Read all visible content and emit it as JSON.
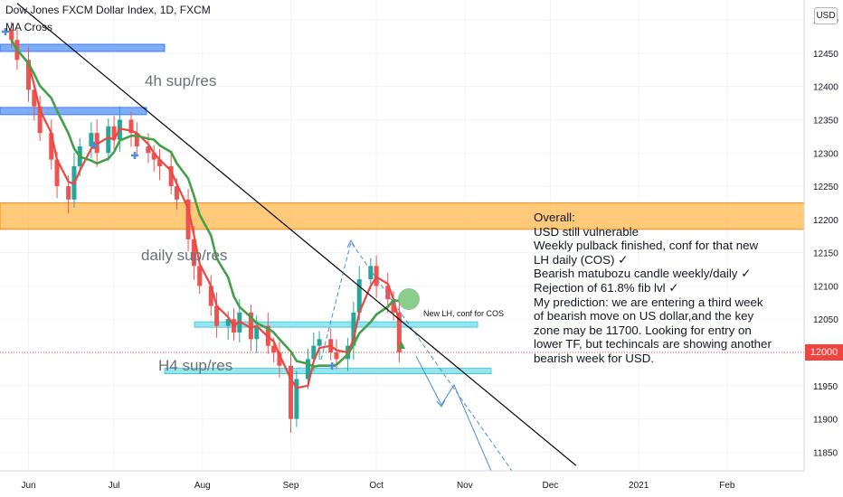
{
  "header": {
    "title": "Dow Jones FXCM Dollar Index, 1D, FXCM",
    "indicator": "MA Cross",
    "currency_badge": "USD"
  },
  "last_price_label": "12000",
  "annotations": {
    "zone_4h": "4h sup/res",
    "zone_daily": "daily sup/res",
    "zone_h4": "H4 sup/res",
    "new_lh_note": "New LH, conf for COS"
  },
  "overall_text": [
    "Overall:",
    "USD still vulnerable",
    "Weekly pulback finished, conf for that new",
    "LH daily (COS) ✓",
    "Bearish matubozu candle weekly/daily ✓",
    "Rejection of 61.8% fib lvl ✓",
    "My prediction: we are entering a third week",
    "of bearish move on US dollar,and the key",
    "zone may be 11700. Looking for entry on",
    "lower TF, but techincals are showing another",
    "bearish week for USD."
  ],
  "colors": {
    "bull_candle": "#26a69a",
    "bear_candle": "#ef5350",
    "fast_ma": "#f0443f",
    "slow_ma": "#43a047",
    "zone_blue": "#5b9bf5",
    "zone_orange": "#ffb74d",
    "zone_cyan": "#80deea",
    "trendline": "#000000",
    "projection": "#4a8fd6",
    "price_line": "#f0443f",
    "cross_marker": "#4a8fd6",
    "highlight_circle": "#66bb6a"
  },
  "chart_data": {
    "type": "candlestick",
    "x_axis": {
      "type": "date",
      "range": [
        "2020-05-22",
        "2021-02-28"
      ],
      "ticks": [
        {
          "label": "Jun",
          "date": "2020-06-01"
        },
        {
          "label": "Jul",
          "date": "2020-07-01"
        },
        {
          "label": "Aug",
          "date": "2020-08-01"
        },
        {
          "label": "Sep",
          "date": "2020-09-01"
        },
        {
          "label": "Oct",
          "date": "2020-10-01"
        },
        {
          "label": "Nov",
          "date": "2020-11-01"
        },
        {
          "label": "Dec",
          "date": "2020-12-01"
        },
        {
          "label": "2021",
          "date": "2021-01-01"
        },
        {
          "label": "Feb",
          "date": "2021-02-01"
        }
      ]
    },
    "y_axis": {
      "range": [
        11822,
        12530
      ],
      "ticks": [
        12500,
        12450,
        12400,
        12350,
        12300,
        12250,
        12200,
        12150,
        12100,
        12050,
        12000,
        11950,
        11900,
        11850
      ],
      "position": "right"
    },
    "last_price": 12000,
    "candles_close": [
      {
        "date": "2020-05-26",
        "close": 12470
      },
      {
        "date": "2020-05-28",
        "close": 12440
      },
      {
        "date": "2020-06-01",
        "close": 12395
      },
      {
        "date": "2020-06-03",
        "close": 12370
      },
      {
        "date": "2020-06-05",
        "close": 12330
      },
      {
        "date": "2020-06-09",
        "close": 12290
      },
      {
        "date": "2020-06-11",
        "close": 12250
      },
      {
        "date": "2020-06-15",
        "close": 12230
      },
      {
        "date": "2020-06-17",
        "close": 12280
      },
      {
        "date": "2020-06-19",
        "close": 12310
      },
      {
        "date": "2020-06-23",
        "close": 12330
      },
      {
        "date": "2020-06-25",
        "close": 12300
      },
      {
        "date": "2020-06-29",
        "close": 12340
      },
      {
        "date": "2020-07-01",
        "close": 12320
      },
      {
        "date": "2020-07-03",
        "close": 12350
      },
      {
        "date": "2020-07-07",
        "close": 12330
      },
      {
        "date": "2020-07-09",
        "close": 12310
      },
      {
        "date": "2020-07-13",
        "close": 12300
      },
      {
        "date": "2020-07-15",
        "close": 12290
      },
      {
        "date": "2020-07-17",
        "close": 12280
      },
      {
        "date": "2020-07-21",
        "close": 12250
      },
      {
        "date": "2020-07-23",
        "close": 12230
      },
      {
        "date": "2020-07-27",
        "close": 12170
      },
      {
        "date": "2020-07-29",
        "close": 12130
      },
      {
        "date": "2020-07-31",
        "close": 12100
      },
      {
        "date": "2020-08-04",
        "close": 12070
      },
      {
        "date": "2020-08-06",
        "close": 12040
      },
      {
        "date": "2020-08-10",
        "close": 12050
      },
      {
        "date": "2020-08-12",
        "close": 12030
      },
      {
        "date": "2020-08-14",
        "close": 12060
      },
      {
        "date": "2020-08-18",
        "close": 12020
      },
      {
        "date": "2020-08-20",
        "close": 12040
      },
      {
        "date": "2020-08-24",
        "close": 12010
      },
      {
        "date": "2020-08-26",
        "close": 12000
      },
      {
        "date": "2020-08-28",
        "close": 11980
      },
      {
        "date": "2020-09-01",
        "close": 11900
      },
      {
        "date": "2020-09-03",
        "close": 11960
      },
      {
        "date": "2020-09-07",
        "close": 11990
      },
      {
        "date": "2020-09-09",
        "close": 12010
      },
      {
        "date": "2020-09-11",
        "close": 12020
      },
      {
        "date": "2020-09-15",
        "close": 12000
      },
      {
        "date": "2020-09-17",
        "close": 11990
      },
      {
        "date": "2020-09-21",
        "close": 12010
      },
      {
        "date": "2020-09-23",
        "close": 12060
      },
      {
        "date": "2020-09-25",
        "close": 12110
      },
      {
        "date": "2020-09-29",
        "close": 12130
      },
      {
        "date": "2020-10-01",
        "close": 12100
      },
      {
        "date": "2020-10-05",
        "close": 12080
      },
      {
        "date": "2020-10-07",
        "close": 12060
      },
      {
        "date": "2020-10-09",
        "close": 12000
      }
    ],
    "series": [
      {
        "name": "MA Cross fast",
        "type": "line",
        "color": "#f0443f"
      },
      {
        "name": "MA Cross slow",
        "type": "line",
        "color": "#43a047"
      }
    ],
    "zones": [
      {
        "label": "4h sup/res",
        "price": 12458,
        "color": "#5b9bf5"
      },
      {
        "label": "",
        "price": 12363,
        "color": "#5b9bf5"
      },
      {
        "label": "daily sup/res",
        "price_top": 12225,
        "price_bottom": 12185,
        "color": "#ffb74d"
      },
      {
        "label": "",
        "price": 12042,
        "color": "#80deea"
      },
      {
        "label": "H4 sup/res",
        "price": 11972,
        "color": "#80deea"
      }
    ],
    "trendline": {
      "from": {
        "date": "2020-05-28",
        "price": 12525
      },
      "to": {
        "date": "2020-12-10",
        "price": 11830
      }
    }
  }
}
